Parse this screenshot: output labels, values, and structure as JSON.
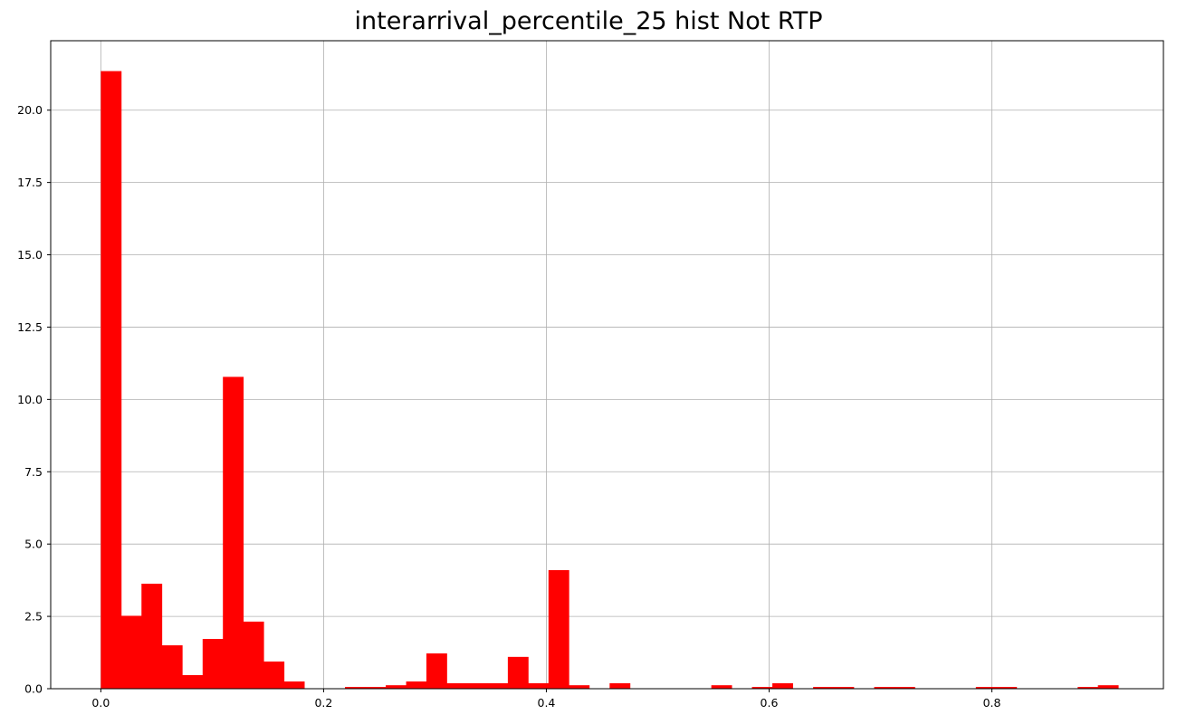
{
  "chart_data": {
    "type": "bar",
    "title": "interarrival_percentile_25 hist Not RTP",
    "xlabel": "",
    "ylabel": "",
    "xlim": [
      -0.045,
      0.954
    ],
    "ylim": [
      0,
      22.4
    ],
    "grid": true,
    "color": "#ff0000",
    "bin_width": 0.01827,
    "x_ticks": [
      0.0,
      0.2,
      0.4,
      0.6,
      0.8
    ],
    "x_tick_labels": [
      "0.0",
      "0.2",
      "0.4",
      "0.6",
      "0.8"
    ],
    "y_ticks": [
      0.0,
      2.5,
      5.0,
      7.5,
      10.0,
      12.5,
      15.0,
      17.5,
      20.0
    ],
    "y_tick_labels": [
      "0.0",
      "2.5",
      "5.0",
      "7.5",
      "10.0",
      "12.5",
      "15.0",
      "17.5",
      "20.0"
    ],
    "bins": [
      {
        "x": 0.0,
        "value": 21.35
      },
      {
        "x": 0.0183,
        "value": 2.52
      },
      {
        "x": 0.0365,
        "value": 3.63
      },
      {
        "x": 0.0548,
        "value": 1.5
      },
      {
        "x": 0.0731,
        "value": 0.47
      },
      {
        "x": 0.0914,
        "value": 1.72
      },
      {
        "x": 0.1096,
        "value": 10.78
      },
      {
        "x": 0.1279,
        "value": 2.32
      },
      {
        "x": 0.1462,
        "value": 0.94
      },
      {
        "x": 0.1644,
        "value": 0.25
      },
      {
        "x": 0.1827,
        "value": 0
      },
      {
        "x": 0.201,
        "value": 0
      },
      {
        "x": 0.2192,
        "value": 0.06
      },
      {
        "x": 0.2375,
        "value": 0.06
      },
      {
        "x": 0.2558,
        "value": 0.12
      },
      {
        "x": 0.2741,
        "value": 0.25
      },
      {
        "x": 0.2923,
        "value": 1.22
      },
      {
        "x": 0.3106,
        "value": 0.19
      },
      {
        "x": 0.3289,
        "value": 0.19
      },
      {
        "x": 0.3471,
        "value": 0.19
      },
      {
        "x": 0.3654,
        "value": 1.1
      },
      {
        "x": 0.3837,
        "value": 0.19
      },
      {
        "x": 0.4019,
        "value": 4.1
      },
      {
        "x": 0.4202,
        "value": 0.12
      },
      {
        "x": 0.4385,
        "value": 0
      },
      {
        "x": 0.4568,
        "value": 0.19
      },
      {
        "x": 0.475,
        "value": 0
      },
      {
        "x": 0.4933,
        "value": 0
      },
      {
        "x": 0.5116,
        "value": 0
      },
      {
        "x": 0.5298,
        "value": 0
      },
      {
        "x": 0.5481,
        "value": 0.12
      },
      {
        "x": 0.5664,
        "value": 0
      },
      {
        "x": 0.5846,
        "value": 0.06
      },
      {
        "x": 0.6029,
        "value": 0.19
      },
      {
        "x": 0.6212,
        "value": 0
      },
      {
        "x": 0.6395,
        "value": 0.06
      },
      {
        "x": 0.6577,
        "value": 0.06
      },
      {
        "x": 0.676,
        "value": 0
      },
      {
        "x": 0.6943,
        "value": 0.06
      },
      {
        "x": 0.7125,
        "value": 0.06
      },
      {
        "x": 0.7308,
        "value": 0
      },
      {
        "x": 0.7491,
        "value": 0
      },
      {
        "x": 0.7673,
        "value": 0
      },
      {
        "x": 0.7856,
        "value": 0.06
      },
      {
        "x": 0.8039,
        "value": 0.06
      },
      {
        "x": 0.8222,
        "value": 0
      },
      {
        "x": 0.8404,
        "value": 0
      },
      {
        "x": 0.8587,
        "value": 0
      },
      {
        "x": 0.877,
        "value": 0.06
      },
      {
        "x": 0.8952,
        "value": 0.12
      }
    ]
  }
}
